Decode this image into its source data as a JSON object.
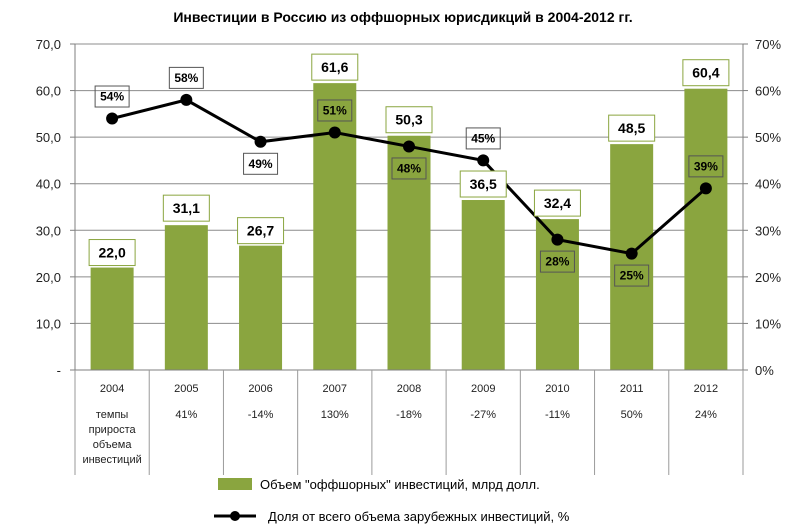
{
  "chart_data": {
    "type": "bar",
    "title": "Инвестиции в Россию из оффшорных юрисдикций в 2004-2012 гг.",
    "categories": [
      "2004",
      "2005",
      "2006",
      "2007",
      "2008",
      "2009",
      "2010",
      "2011",
      "2012"
    ],
    "series": [
      {
        "name": "Объем \"оффшорных\" инвестиций, млрд долл.",
        "type": "bar",
        "axis": "left",
        "values": [
          22.0,
          31.1,
          26.7,
          61.6,
          50.3,
          36.5,
          32.4,
          48.5,
          60.4
        ],
        "labels": [
          "22,0",
          "31,1",
          "26,7",
          "61,6",
          "50,3",
          "36,5",
          "32,4",
          "48,5",
          "60,4"
        ],
        "color": "#8aa53f"
      },
      {
        "name": "Доля от всего объема зарубежных инвестиций, %",
        "type": "line",
        "axis": "right",
        "values": [
          54,
          58,
          49,
          51,
          48,
          45,
          28,
          25,
          39
        ],
        "labels": [
          "54%",
          "58%",
          "49%",
          "51%",
          "48%",
          "45%",
          "28%",
          "25%",
          "39%"
        ],
        "color": "#000000"
      }
    ],
    "ylim": [
      0,
      70
    ],
    "y_ticks": [
      "-",
      "10,0",
      "20,0",
      "30,0",
      "40,0",
      "50,0",
      "60,0",
      "70,0"
    ],
    "y2lim": [
      0,
      70
    ],
    "y2_ticks": [
      "0%",
      "10%",
      "20%",
      "30%",
      "40%",
      "50%",
      "60%",
      "70%"
    ],
    "table_row": {
      "label": [
        "темпы",
        "прироста",
        "объема",
        "инвестиций"
      ],
      "values": [
        "",
        "41%",
        "-14%",
        "130%",
        "-18%",
        "-27%",
        "-11%",
        "50%",
        "24%"
      ]
    },
    "legend_position": "bottom",
    "grid": true
  }
}
